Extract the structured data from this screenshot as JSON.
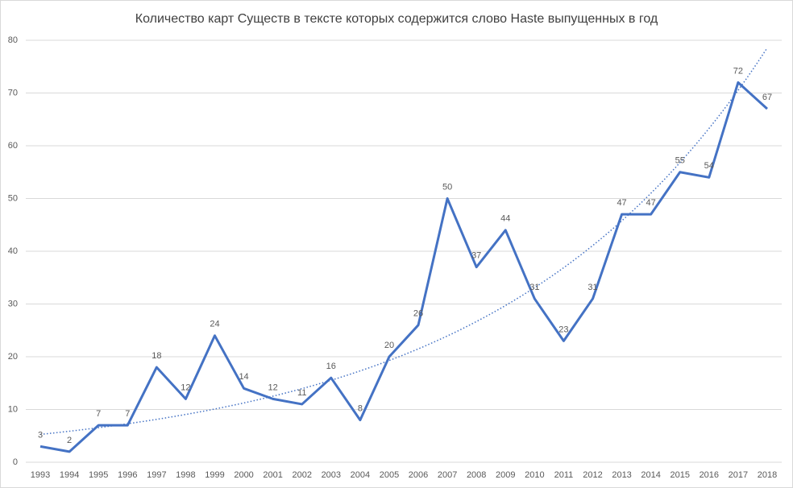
{
  "chart_data": {
    "type": "line",
    "title": "Количество карт Существ в тексте которых содержится слово Haste выпущенных в год",
    "categories": [
      "1993",
      "1994",
      "1995",
      "1996",
      "1997",
      "1998",
      "1999",
      "2000",
      "2001",
      "2002",
      "2003",
      "2004",
      "2005",
      "2006",
      "2007",
      "2008",
      "2009",
      "2010",
      "2011",
      "2012",
      "2013",
      "2014",
      "2015",
      "2016",
      "2017",
      "2018"
    ],
    "values": [
      3,
      2,
      7,
      7,
      18,
      12,
      24,
      14,
      12,
      11,
      16,
      8,
      20,
      26,
      50,
      37,
      44,
      31,
      23,
      31,
      47,
      47,
      55,
      54,
      72,
      67
    ],
    "color": "#4472c4",
    "ylim": [
      0,
      80
    ],
    "yticks": [
      0,
      10,
      20,
      30,
      40,
      50,
      60,
      70,
      80
    ],
    "grid": true,
    "data_labels": true,
    "trendline": "exponential"
  }
}
